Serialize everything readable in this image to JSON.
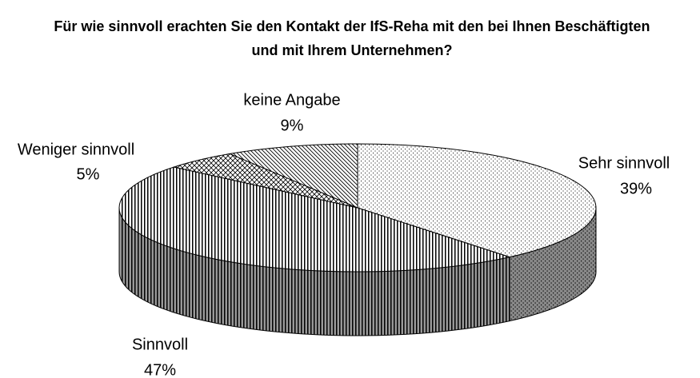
{
  "chart_data": {
    "type": "pie",
    "title": "Für wie sinnvoll erachten Sie den Kontakt der IfS-Reha mit den bei Ihnen Beschäftigten und mit Ihrem Unternehmen?",
    "categories": [
      "Sehr sinnvoll",
      "Sinnvoll",
      "Weniger sinnvoll",
      "keine Angabe"
    ],
    "values": [
      39,
      47,
      5,
      9
    ],
    "value_labels": [
      "39%",
      "47%",
      "5%",
      "9%"
    ]
  }
}
